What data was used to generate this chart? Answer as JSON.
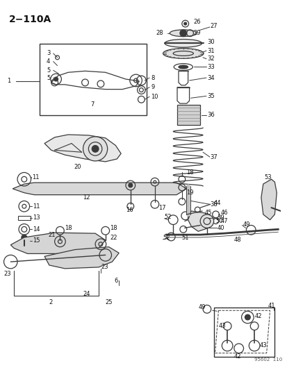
{
  "title": "2−110A",
  "bg_color": "#ffffff",
  "fig_width": 4.14,
  "fig_height": 5.33,
  "dpi": 100,
  "watermark": "95602  110"
}
